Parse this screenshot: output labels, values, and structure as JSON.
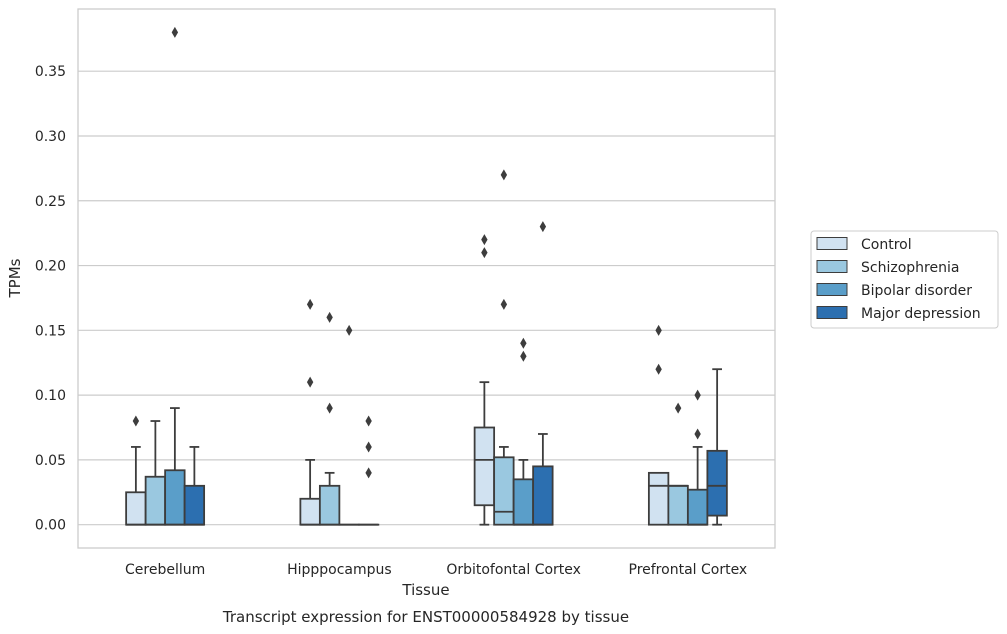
{
  "chart_data": {
    "type": "box",
    "title": "",
    "caption": "Transcript expression for ENST00000584928 by tissue",
    "xlabel": "Tissue",
    "ylabel": "TPMs",
    "ylim": [
      -0.018,
      0.398
    ],
    "yticks": [
      0.0,
      0.05,
      0.1,
      0.15,
      0.2,
      0.25,
      0.3,
      0.35
    ],
    "ytick_labels": [
      "0.00",
      "0.05",
      "0.10",
      "0.15",
      "0.20",
      "0.25",
      "0.30",
      "0.35"
    ],
    "grid": "horizontal",
    "legend_position": "right",
    "categories": [
      "Cerebellum",
      "Hipppocampus",
      "Orbitofontal Cortex",
      "Prefrontal Cortex"
    ],
    "series": [
      {
        "name": "Control",
        "color": "#d1e2f1",
        "boxes": [
          {
            "whisker_low": 0.0,
            "q1": 0.0,
            "median": 0.0,
            "q3": 0.025,
            "whisker_high": 0.06,
            "outliers": [
              0.08
            ]
          },
          {
            "whisker_low": 0.0,
            "q1": 0.0,
            "median": 0.0,
            "q3": 0.02,
            "whisker_high": 0.05,
            "outliers": [
              0.11,
              0.17
            ]
          },
          {
            "whisker_low": 0.0,
            "q1": 0.015,
            "median": 0.05,
            "q3": 0.075,
            "whisker_high": 0.11,
            "outliers": [
              0.21,
              0.22
            ]
          },
          {
            "whisker_low": 0.0,
            "q1": 0.0,
            "median": 0.03,
            "q3": 0.04,
            "whisker_high": 0.04,
            "outliers": [
              0.12,
              0.15
            ]
          }
        ]
      },
      {
        "name": "Schizophrenia",
        "color": "#9ac8e0",
        "boxes": [
          {
            "whisker_low": 0.0,
            "q1": 0.0,
            "median": 0.0,
            "q3": 0.037,
            "whisker_high": 0.08,
            "outliers": []
          },
          {
            "whisker_low": 0.0,
            "q1": 0.0,
            "median": 0.0,
            "q3": 0.03,
            "whisker_high": 0.04,
            "outliers": [
              0.09,
              0.16
            ]
          },
          {
            "whisker_low": 0.0,
            "q1": 0.0,
            "median": 0.01,
            "q3": 0.052,
            "whisker_high": 0.06,
            "outliers": [
              0.17,
              0.27
            ]
          },
          {
            "whisker_low": 0.0,
            "q1": 0.0,
            "median": 0.03,
            "q3": 0.03,
            "whisker_high": 0.03,
            "outliers": [
              0.09
            ]
          }
        ]
      },
      {
        "name": "Bipolar disorder",
        "color": "#5a9ec9",
        "boxes": [
          {
            "whisker_low": 0.0,
            "q1": 0.0,
            "median": 0.0,
            "q3": 0.042,
            "whisker_high": 0.09,
            "outliers": [
              0.38
            ]
          },
          {
            "whisker_low": 0.0,
            "q1": 0.0,
            "median": 0.0,
            "q3": 0.0,
            "whisker_high": 0.0,
            "outliers": [
              0.15
            ]
          },
          {
            "whisker_low": 0.0,
            "q1": 0.0,
            "median": 0.0,
            "q3": 0.035,
            "whisker_high": 0.05,
            "outliers": [
              0.13,
              0.14
            ]
          },
          {
            "whisker_low": 0.0,
            "q1": 0.0,
            "median": 0.0,
            "q3": 0.027,
            "whisker_high": 0.06,
            "outliers": [
              0.07,
              0.1
            ]
          }
        ]
      },
      {
        "name": "Major depression",
        "color": "#2c6fb0",
        "boxes": [
          {
            "whisker_low": 0.0,
            "q1": 0.0,
            "median": 0.0,
            "q3": 0.03,
            "whisker_high": 0.06,
            "outliers": []
          },
          {
            "whisker_low": 0.0,
            "q1": 0.0,
            "median": 0.0,
            "q3": 0.0,
            "whisker_high": 0.0,
            "outliers": [
              0.04,
              0.06,
              0.08
            ]
          },
          {
            "whisker_low": 0.0,
            "q1": 0.0,
            "median": 0.0,
            "q3": 0.045,
            "whisker_high": 0.07,
            "outliers": [
              0.23
            ]
          },
          {
            "whisker_low": 0.0,
            "q1": 0.007,
            "median": 0.03,
            "q3": 0.057,
            "whisker_high": 0.12,
            "outliers": []
          }
        ]
      }
    ]
  }
}
